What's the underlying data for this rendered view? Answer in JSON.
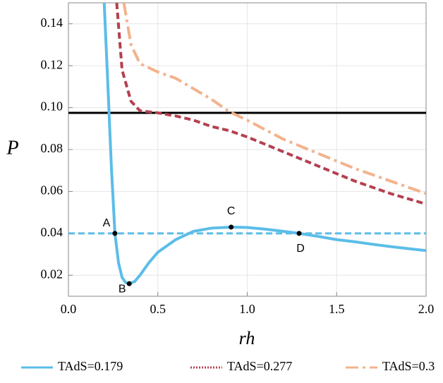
{
  "chart_data": {
    "type": "line",
    "x_label": "rh",
    "y_label": "P",
    "xlim": [
      0,
      2
    ],
    "ylim": [
      0.01,
      0.15
    ],
    "xticks": [
      {
        "value": 0,
        "label": "0.0"
      },
      {
        "value": 0.5,
        "label": "0.5"
      },
      {
        "value": 1,
        "label": "1.0"
      },
      {
        "value": 1.5,
        "label": "1.5"
      },
      {
        "value": 2,
        "label": "2.0"
      }
    ],
    "yticks": [
      0.02,
      0.04,
      0.06,
      0.08,
      {
        "value": 0.1,
        "label": "0.10"
      },
      0.12,
      0.14
    ],
    "grid": true,
    "legend": "bottom",
    "series": [
      {
        "name": "TAdS=0.179",
        "color": "#5bbde8",
        "dash": "solid",
        "x": [
          0.2,
          0.22,
          0.24,
          0.26,
          0.28,
          0.3,
          0.32,
          0.34,
          0.37,
          0.4,
          0.45,
          0.5,
          0.6,
          0.7,
          0.8,
          0.91,
          1.0,
          1.1,
          1.2,
          1.29,
          1.4,
          1.5,
          1.6,
          1.7,
          1.8,
          1.9,
          2.0
        ],
        "values": [
          0.15,
          0.112,
          0.072,
          0.04,
          0.026,
          0.019,
          0.0165,
          0.016,
          0.017,
          0.02,
          0.026,
          0.031,
          0.037,
          0.041,
          0.0425,
          0.043,
          0.0428,
          0.042,
          0.041,
          0.04,
          0.0385,
          0.037,
          0.036,
          0.0348,
          0.0337,
          0.0327,
          0.0318
        ]
      },
      {
        "name": "TAdS=0.277",
        "color": "#b5404f",
        "dash": "dashed",
        "x": [
          0.27,
          0.3,
          0.35,
          0.4,
          0.5,
          0.6,
          0.7,
          0.8,
          0.9,
          1.0,
          1.2,
          1.4,
          1.6,
          1.8,
          2.0
        ],
        "values": [
          0.15,
          0.118,
          0.103,
          0.0985,
          0.0975,
          0.096,
          0.094,
          0.091,
          0.089,
          0.086,
          0.079,
          0.072,
          0.065,
          0.059,
          0.054
        ]
      },
      {
        "name": "TAdS=0.3",
        "color": "#f2b38d",
        "dash": "dashdot",
        "x": [
          0.31,
          0.35,
          0.4,
          0.5,
          0.6,
          0.7,
          0.8,
          0.9,
          1.0,
          1.2,
          1.4,
          1.6,
          1.8,
          2.0
        ],
        "values": [
          0.15,
          0.13,
          0.121,
          0.117,
          0.114,
          0.109,
          0.104,
          0.098,
          0.094,
          0.085,
          0.078,
          0.071,
          0.065,
          0.059
        ]
      }
    ],
    "hlines": [
      {
        "value": 0.0975,
        "color": "#000000",
        "dash": "solid"
      },
      {
        "value": 0.04,
        "color": "#5bbde8",
        "dash": "dashed"
      }
    ],
    "points": [
      {
        "label": "A",
        "x": 0.26,
        "y": 0.04
      },
      {
        "label": "B",
        "x": 0.34,
        "y": 0.016
      },
      {
        "label": "C",
        "x": 0.91,
        "y": 0.043
      },
      {
        "label": "D",
        "x": 1.29,
        "y": 0.04
      }
    ]
  }
}
